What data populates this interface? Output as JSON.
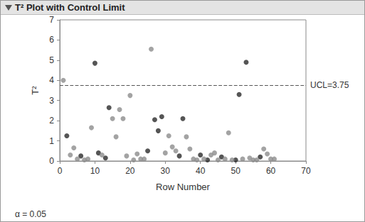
{
  "chart_data": {
    "type": "scatter",
    "title": "T² Plot with Control Limit",
    "x_label": "Row Number",
    "y_label": "T²",
    "xlim": [
      0,
      70
    ],
    "xticks": [
      0,
      10,
      20,
      30,
      40,
      50,
      60,
      70
    ],
    "ylim": [
      0,
      7
    ],
    "yticks": [
      0,
      1,
      2,
      3,
      4,
      5,
      6,
      7
    ],
    "grid": false,
    "control_limit": {
      "value": 3.75,
      "label": "UCL=3.75",
      "line_style": "dashed"
    },
    "annotation": "α = 0.05",
    "series": [
      {
        "color": "#2b2b2b",
        "marker": "circle",
        "x": [
          2,
          6,
          10,
          11,
          13,
          14,
          25,
          27,
          28,
          29,
          34,
          35,
          40,
          42,
          46,
          50,
          51,
          53,
          57
        ],
        "values": [
          1.25,
          0.25,
          4.85,
          0.4,
          0.15,
          2.65,
          0.5,
          2.05,
          1.5,
          2.2,
          0.25,
          2.1,
          0.3,
          0.05,
          0.2,
          0.05,
          3.3,
          4.9,
          0.2
        ]
      },
      {
        "color": "#8c8c8c",
        "marker": "circle",
        "x": [
          1,
          3,
          4,
          5,
          7,
          8,
          9,
          12,
          15,
          16,
          17,
          18,
          19,
          20,
          21,
          22,
          23,
          24,
          26,
          30,
          31,
          32,
          33,
          36,
          37,
          38,
          39,
          41,
          43,
          44,
          45,
          47,
          48,
          49,
          52,
          54,
          55,
          56,
          58,
          59,
          60,
          61
        ],
        "values": [
          4.0,
          0.3,
          0.65,
          0.1,
          0.05,
          0.1,
          1.65,
          0.3,
          2.1,
          1.2,
          2.55,
          2.1,
          0.25,
          3.25,
          0.05,
          0.35,
          0.1,
          0.1,
          5.55,
          0.4,
          1.25,
          0.7,
          0.5,
          1.2,
          0.6,
          0.1,
          0.05,
          0.1,
          0.3,
          0.4,
          0.05,
          0.1,
          1.4,
          0.05,
          0.1,
          0.15,
          0.05,
          0.05,
          0.6,
          0.35,
          0.1,
          0.1
        ]
      }
    ]
  }
}
